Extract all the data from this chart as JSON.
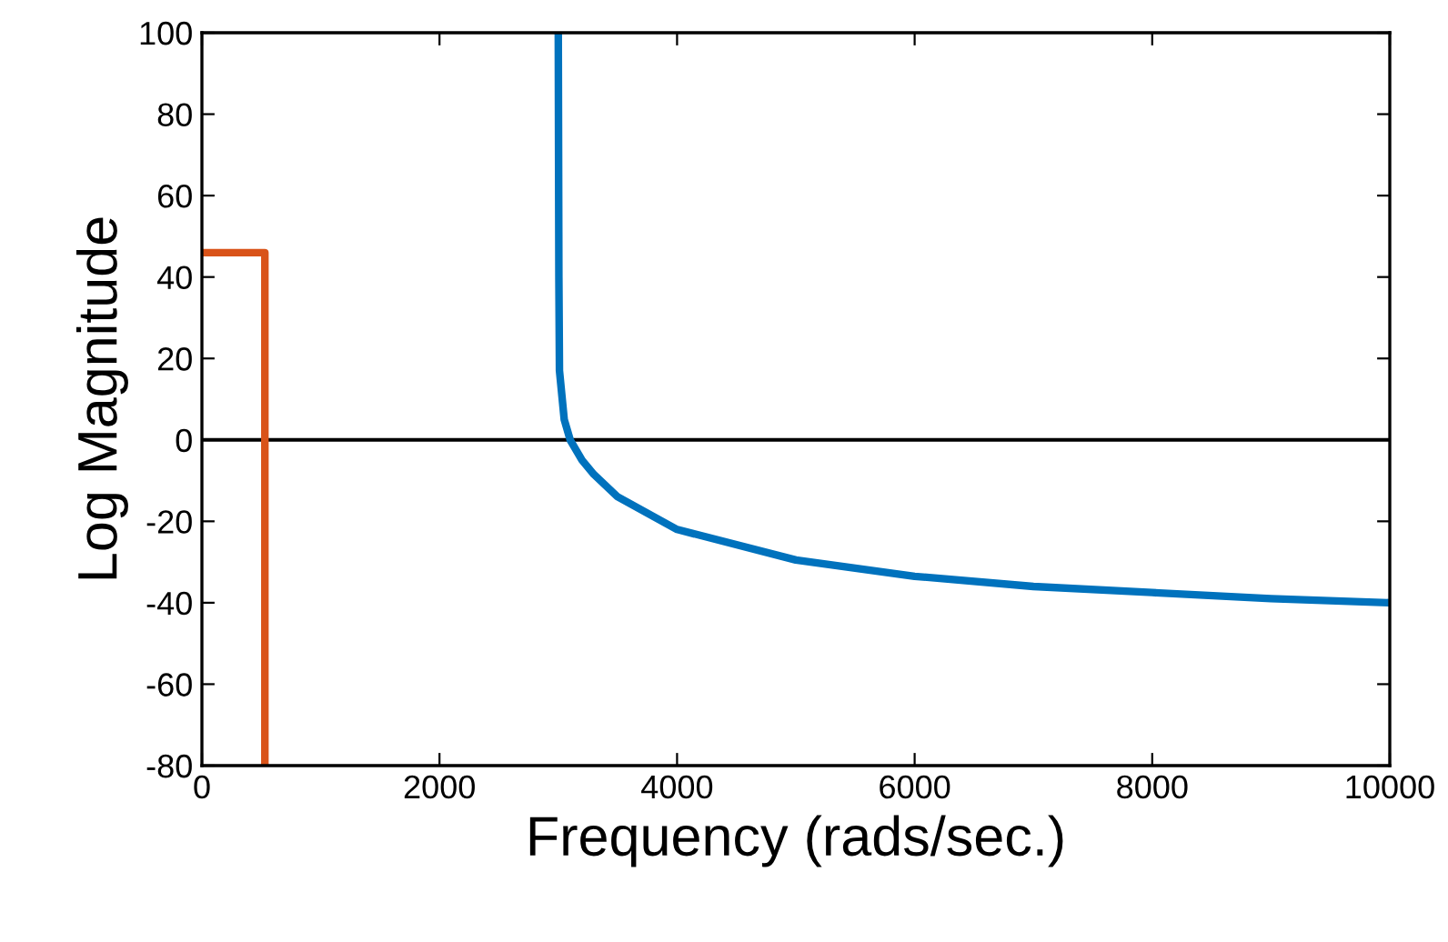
{
  "chart_data": {
    "type": "line",
    "xlabel": "Frequency (rads/sec.)",
    "ylabel": "Log Magnitude",
    "xlim": [
      0,
      10000
    ],
    "ylim": [
      -80,
      100
    ],
    "xticks": [
      0,
      2000,
      4000,
      6000,
      8000,
      10000
    ],
    "yticks": [
      -80,
      -60,
      -40,
      -20,
      0,
      20,
      40,
      60,
      80,
      100
    ],
    "grid": false,
    "legend": false,
    "line_style": "solid",
    "marker": "none",
    "ref_lines": [
      {
        "axis": "y",
        "value": 0,
        "color": "#000000",
        "line_style": "solid"
      }
    ],
    "series": [
      {
        "color": "#0072bd",
        "x": [
          3000,
          3005,
          3010,
          3050,
          3100,
          3200,
          3300,
          3500,
          4000,
          5000,
          6000,
          7000,
          8000,
          9000,
          10000
        ],
        "values": [
          100,
          40,
          17,
          5,
          0,
          -5,
          -8.5,
          -14,
          -22,
          -29.5,
          -33.5,
          -36,
          -37.5,
          -39,
          -40
        ]
      },
      {
        "color": "#d95319",
        "x": [
          0,
          530,
          530
        ],
        "values": [
          46,
          46,
          -80
        ]
      }
    ]
  }
}
